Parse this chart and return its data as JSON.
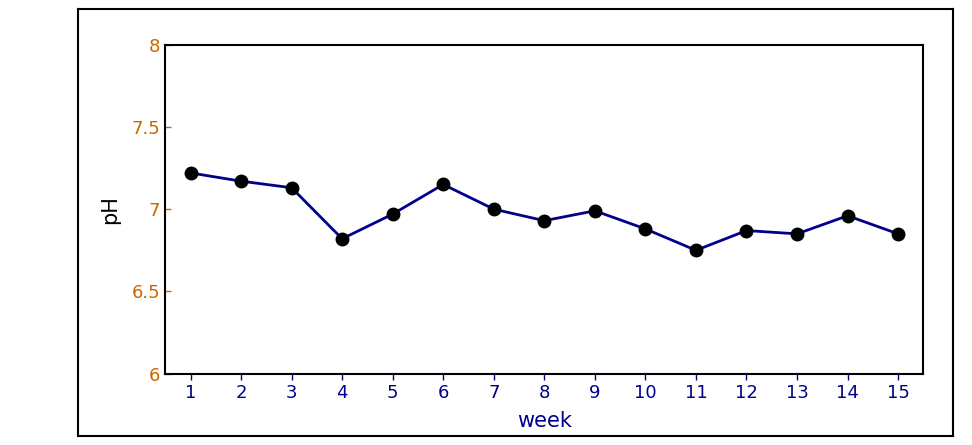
{
  "weeks": [
    1,
    2,
    3,
    4,
    5,
    6,
    7,
    8,
    9,
    10,
    11,
    12,
    13,
    14,
    15
  ],
  "ph_values": [
    7.22,
    7.17,
    7.13,
    6.82,
    6.97,
    7.15,
    7.0,
    6.93,
    6.99,
    6.88,
    6.75,
    6.87,
    6.85,
    6.96,
    6.85
  ],
  "line_color": "#00008B",
  "marker_color": "#000000",
  "xlabel": "week",
  "ylabel": "pH",
  "xlim": [
    0.5,
    15.5
  ],
  "ylim": [
    6,
    8
  ],
  "yticks": [
    6,
    6.5,
    7,
    7.5,
    8
  ],
  "ytick_labels": [
    "6",
    "6.5",
    "7",
    "7.5",
    "8"
  ],
  "xticks": [
    1,
    2,
    3,
    4,
    5,
    6,
    7,
    8,
    9,
    10,
    11,
    12,
    13,
    14,
    15
  ],
  "xlabel_fontsize": 15,
  "ylabel_fontsize": 15,
  "tick_label_fontsize": 13,
  "tick_color_x": "#00008B",
  "tick_color_y": "#CC6600",
  "xlabel_color": "#00008B",
  "ylabel_color": "#000000",
  "marker_size": 9,
  "line_width": 2.0,
  "figure_bg": "#ffffff",
  "axes_bg": "#ffffff",
  "outer_box_color": "#000000",
  "spine_color": "#000000"
}
